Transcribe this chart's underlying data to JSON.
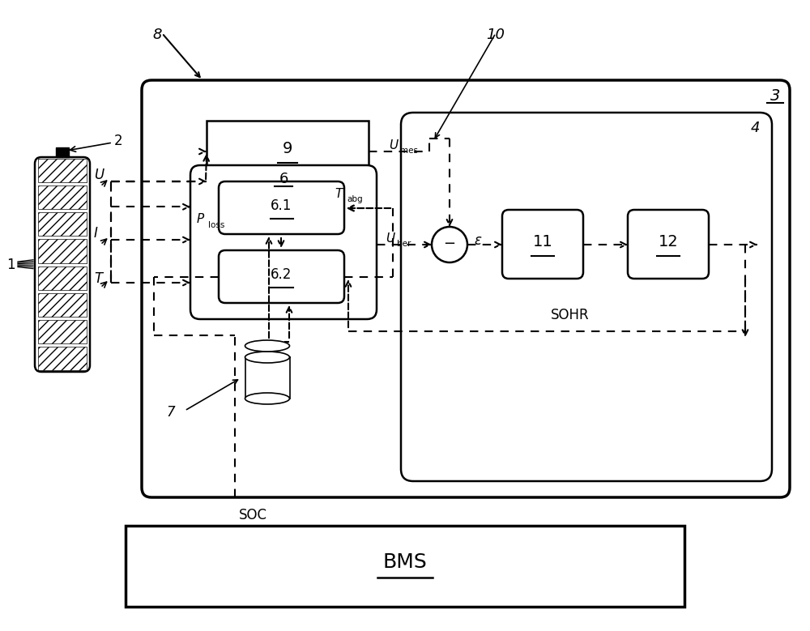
{
  "bg_color": "#ffffff",
  "fig_width": 10.0,
  "fig_height": 7.79,
  "label_8": "8",
  "label_2": "2",
  "label_1": "1",
  "label_3": "3",
  "label_4": "4",
  "label_7": "7",
  "label_10": "10",
  "label_SOC": "SOC",
  "label_BMS": "BMS",
  "label_U": "U",
  "label_I": "I",
  "label_T": "T",
  "label_eps": "ε",
  "label_9": "9",
  "label_6": "6",
  "label_61": "6.1",
  "label_62": "6.2",
  "label_11": "11",
  "label_12": "12",
  "label_SOHR": "SOHR"
}
